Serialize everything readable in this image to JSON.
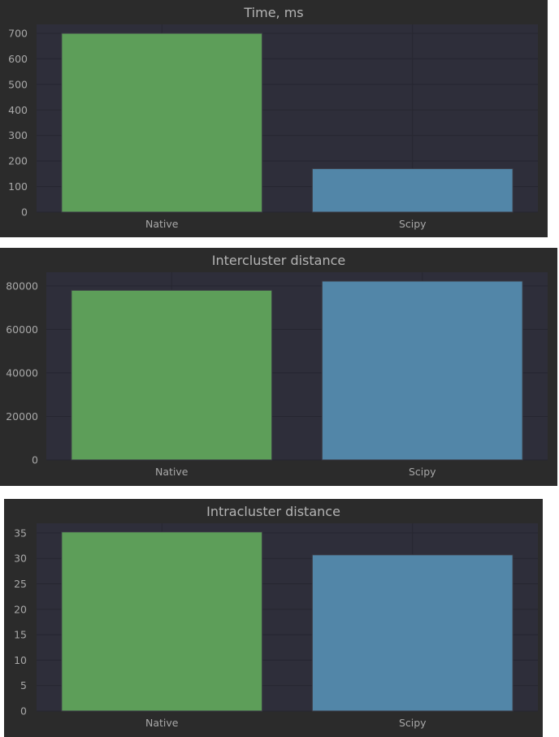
{
  "chart_data": [
    {
      "type": "bar",
      "title": "Time, ms",
      "categories": [
        "Native",
        "Scipy"
      ],
      "values": [
        700,
        170
      ],
      "colors": [
        "#5d9e59",
        "#5286a8"
      ],
      "ylim": [
        0,
        735
      ],
      "yticks": [
        0,
        100,
        200,
        300,
        400,
        500,
        600,
        700
      ],
      "xlabel": "",
      "ylabel": "",
      "grid": true
    },
    {
      "type": "bar",
      "title": "Intercluster distance",
      "categories": [
        "Native",
        "Scipy"
      ],
      "values": [
        78000,
        82200
      ],
      "colors": [
        "#5d9e59",
        "#5286a8"
      ],
      "ylim": [
        0,
        86300
      ],
      "yticks": [
        0,
        20000,
        40000,
        60000,
        80000
      ],
      "xlabel": "",
      "ylabel": "",
      "grid": true
    },
    {
      "type": "bar",
      "title": "Intracluster distance",
      "categories": [
        "Native",
        "Scipy"
      ],
      "values": [
        35.2,
        30.7
      ],
      "colors": [
        "#5d9e59",
        "#5286a8"
      ],
      "ylim": [
        0,
        36.9
      ],
      "yticks": [
        0,
        5,
        10,
        15,
        20,
        25,
        30,
        35
      ],
      "xlabel": "",
      "ylabel": "",
      "grid": true
    }
  ],
  "theme": {
    "figure_bg": "#2b2b2b",
    "plot_bg": "#2e2e3a",
    "grid": "#262630",
    "text": "#a8a8a8",
    "bar_edge": "#3a3a44"
  }
}
